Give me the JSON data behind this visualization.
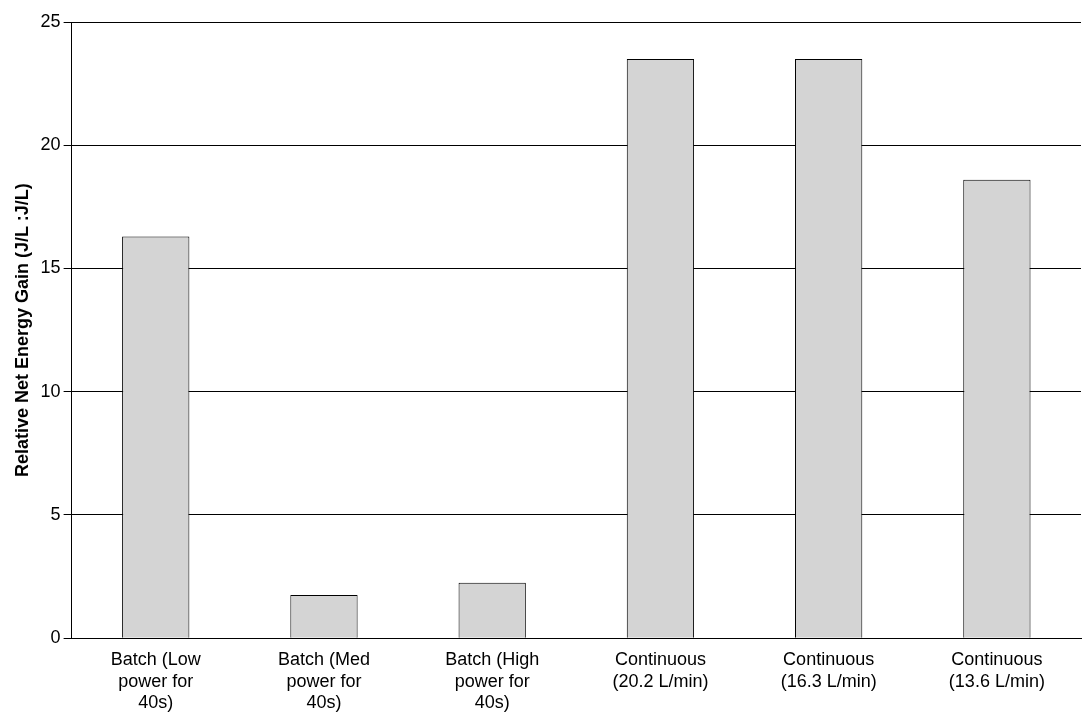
{
  "chart_data": {
    "type": "bar",
    "ylabel": "Relative Net Energy Gain (J/L :J/L)",
    "categories": [
      "Batch (Low power for 40s)",
      "Batch (Med power for 40s)",
      "Batch (High power for 40s)",
      "Continuous (20.2 L/min)",
      "Continuous (16.3 L/min)",
      "Continuous (13.6 L/min)"
    ],
    "values": [
      16.3,
      1.75,
      2.25,
      23.5,
      23.5,
      18.6
    ],
    "color": "#d4d4d4",
    "ylim": [
      0,
      25
    ],
    "yticks": [
      0,
      5,
      10,
      15,
      20,
      25
    ],
    "grid": "y",
    "legend": false
  }
}
